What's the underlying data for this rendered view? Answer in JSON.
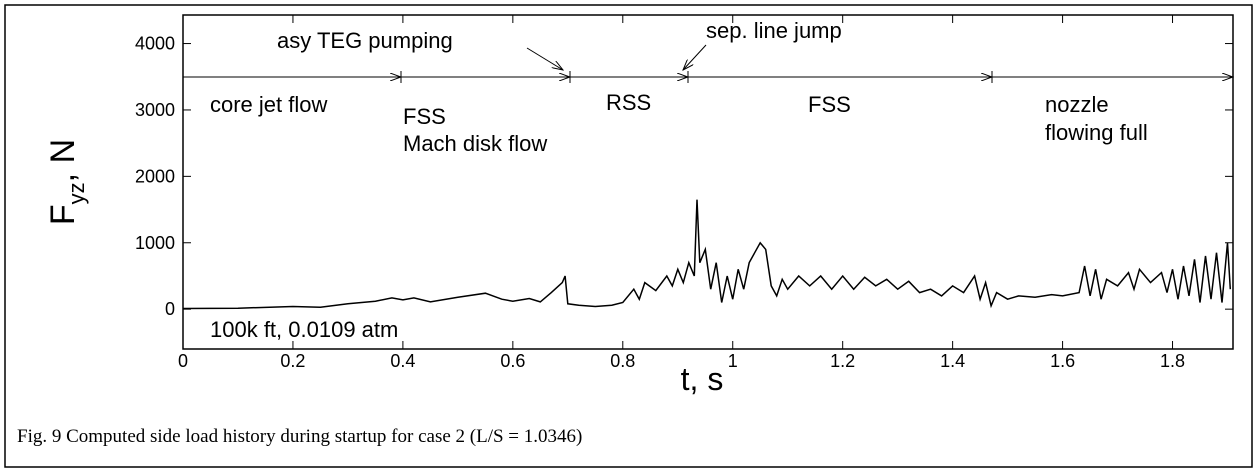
{
  "chart_data": {
    "type": "line",
    "xlabel": "t, s",
    "ylabel": {
      "main": "F",
      "sub": "yz",
      "rest": ", N"
    },
    "caption": "Fig. 9  Computed side load history during startup for case 2 (L/S = 1.0346)",
    "annotations": {
      "asy_teg": "asy TEG pumping",
      "sep_line": "sep. line jump",
      "core_jet": "core jet flow",
      "fss_mach": [
        "FSS",
        "Mach disk flow"
      ],
      "rss": "RSS",
      "fss": "FSS",
      "nozzle": [
        "nozzle",
        "flowing full"
      ],
      "altitude": "100k ft, 0.0109 atm"
    },
    "xlim": [
      0,
      1.91
    ],
    "ylim": [
      -600,
      4430
    ],
    "xticks": [
      0,
      0.2,
      0.4,
      0.6,
      0.8,
      1,
      1.2,
      1.4,
      1.6,
      1.8
    ],
    "yticks": [
      0,
      1000,
      2000,
      3000,
      4000
    ],
    "color": "#000000",
    "x": [
      0,
      0.1,
      0.2,
      0.25,
      0.3,
      0.35,
      0.38,
      0.4,
      0.42,
      0.45,
      0.5,
      0.55,
      0.58,
      0.6,
      0.63,
      0.65,
      0.67,
      0.69,
      0.695,
      0.7,
      0.72,
      0.75,
      0.78,
      0.8,
      0.82,
      0.83,
      0.84,
      0.86,
      0.88,
      0.89,
      0.9,
      0.91,
      0.92,
      0.93,
      0.935,
      0.94,
      0.95,
      0.96,
      0.97,
      0.98,
      0.99,
      1.0,
      1.01,
      1.02,
      1.03,
      1.04,
      1.05,
      1.06,
      1.07,
      1.08,
      1.09,
      1.1,
      1.12,
      1.14,
      1.16,
      1.18,
      1.2,
      1.22,
      1.24,
      1.26,
      1.28,
      1.3,
      1.32,
      1.34,
      1.36,
      1.38,
      1.4,
      1.42,
      1.44,
      1.45,
      1.46,
      1.47,
      1.48,
      1.5,
      1.52,
      1.55,
      1.58,
      1.6,
      1.63,
      1.64,
      1.65,
      1.66,
      1.67,
      1.68,
      1.7,
      1.72,
      1.73,
      1.74,
      1.76,
      1.78,
      1.79,
      1.8,
      1.81,
      1.82,
      1.83,
      1.84,
      1.85,
      1.86,
      1.87,
      1.88,
      1.89,
      1.9,
      1.905
    ],
    "values": [
      10,
      15,
      40,
      30,
      80,
      120,
      170,
      140,
      170,
      110,
      180,
      240,
      150,
      120,
      160,
      110,
      250,
      400,
      500,
      80,
      60,
      40,
      60,
      100,
      300,
      150,
      400,
      280,
      500,
      350,
      600,
      400,
      700,
      500,
      1650,
      700,
      900,
      300,
      700,
      100,
      500,
      150,
      600,
      300,
      700,
      850,
      1000,
      900,
      350,
      200,
      450,
      300,
      500,
      350,
      500,
      300,
      500,
      300,
      480,
      350,
      450,
      300,
      420,
      250,
      300,
      200,
      350,
      250,
      500,
      150,
      400,
      50,
      250,
      150,
      200,
      180,
      220,
      200,
      250,
      650,
      200,
      600,
      150,
      450,
      350,
      550,
      300,
      600,
      400,
      550,
      250,
      600,
      150,
      650,
      200,
      750,
      100,
      800,
      150,
      850,
      100,
      1000,
      300
    ]
  }
}
